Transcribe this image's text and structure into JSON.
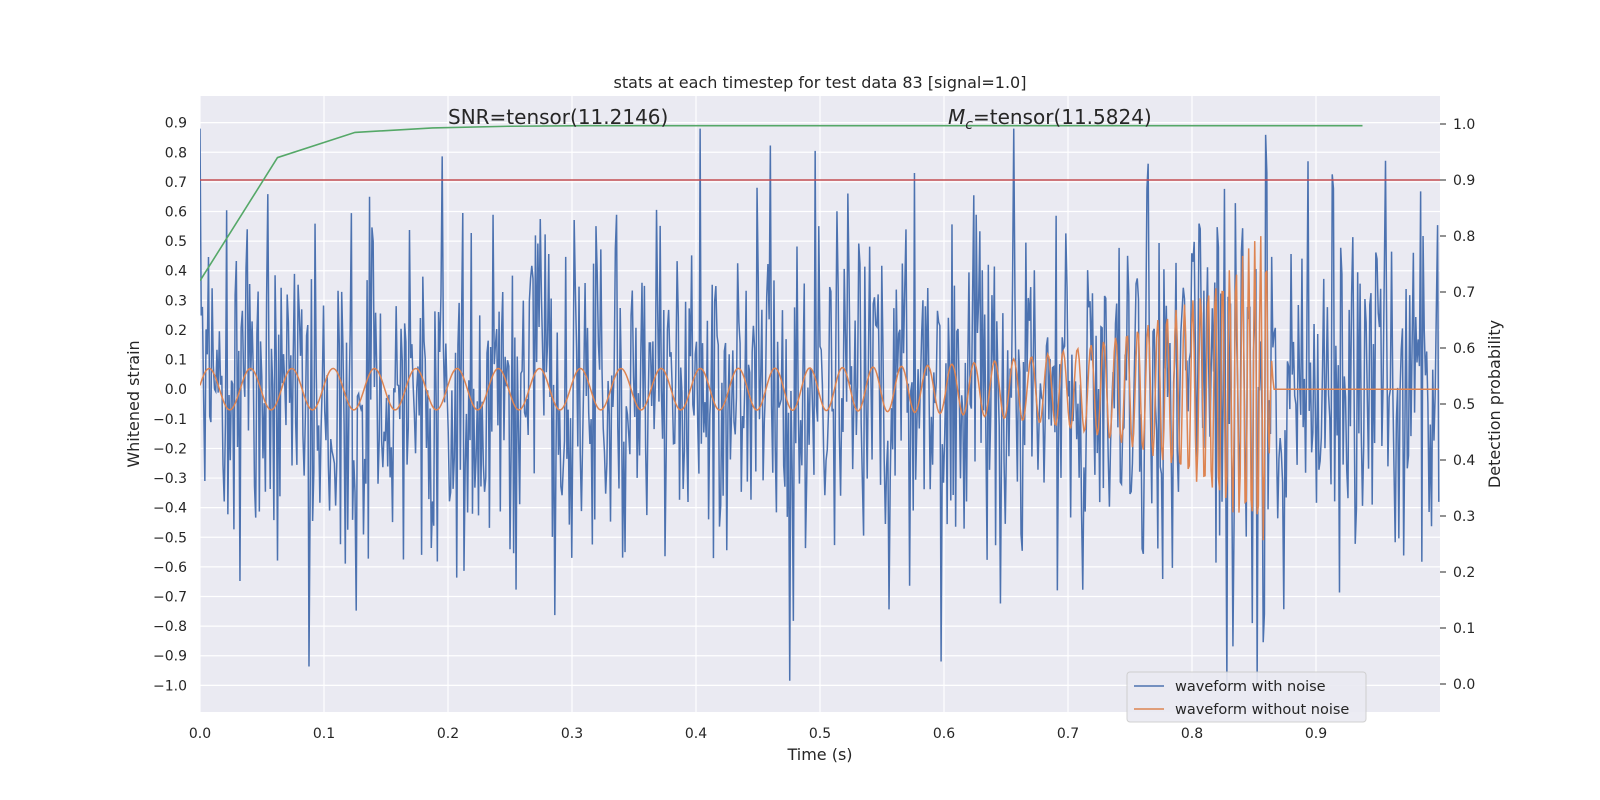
{
  "chart_data": {
    "type": "line",
    "title": "stats at each timestep for test data 83 [signal=1.0]",
    "xlabel": "Time (s)",
    "ylabel_left": "Whitened strain",
    "ylabel_right": "Detection probability",
    "xlim": [
      0.0,
      1.0
    ],
    "ylim_left": [
      -1.09,
      0.99
    ],
    "ylim_right": [
      -0.05,
      1.05
    ],
    "x_ticks": [
      "0.0",
      "0.1",
      "0.2",
      "0.3",
      "0.4",
      "0.5",
      "0.6",
      "0.7",
      "0.8",
      "0.9"
    ],
    "y_ticks_left": [
      "0.9",
      "0.8",
      "0.7",
      "0.6",
      "0.5",
      "0.4",
      "0.3",
      "0.2",
      "0.1",
      "0.0",
      "−0.1",
      "−0.2",
      "−0.3",
      "−0.4",
      "−0.5",
      "−0.6",
      "−0.7",
      "−0.8",
      "−0.9",
      "−1.0"
    ],
    "y_ticks_right": [
      "1.0",
      "0.9",
      "0.8",
      "0.7",
      "0.6",
      "0.5",
      "0.4",
      "0.3",
      "0.2",
      "0.1",
      "0.0"
    ],
    "grid": true,
    "legend_position": "lower-right",
    "annotations": {
      "snr": "SNR=tensor(11.2146)",
      "mc_symbol": "M",
      "mc_subscript": "c",
      "mc_value": "=tensor(11.5824)"
    },
    "threshold": {
      "axis": "right",
      "value": 0.9,
      "color": "#c44e52"
    },
    "series": [
      {
        "name": "waveform with noise",
        "axis": "left",
        "color": "#4c72b0",
        "generated": "noisy strain samples at 1024 Hz between about -1.0 and 0.88, with the chirp added"
      },
      {
        "name": "waveform without noise",
        "axis": "left",
        "color": "#dd8452",
        "chirp": {
          "t_merge": 0.86,
          "amp_start": 0.07,
          "amp_peak": 0.55,
          "f_start": 30,
          "f_end": 220
        }
      },
      {
        "name": "",
        "axis": "right",
        "color": "#55a868",
        "x": [
          0.0,
          0.0625,
          0.125,
          0.1875,
          0.25,
          0.3125,
          0.375,
          0.4375,
          0.5,
          0.5625,
          0.625,
          0.6875,
          0.75,
          0.8125,
          0.875,
          0.9375
        ],
        "y": [
          0.72,
          0.94,
          0.985,
          0.993,
          0.996,
          0.997,
          0.997,
          0.997,
          0.997,
          0.997,
          0.997,
          0.997,
          0.997,
          0.997,
          0.997,
          0.997
        ]
      }
    ]
  },
  "colors": {
    "background": "#eaeaf2",
    "grid": "#ffffff",
    "noisy": "#4c72b0",
    "clean": "#dd8452",
    "prob": "#55a868",
    "threshold": "#c44e52"
  }
}
